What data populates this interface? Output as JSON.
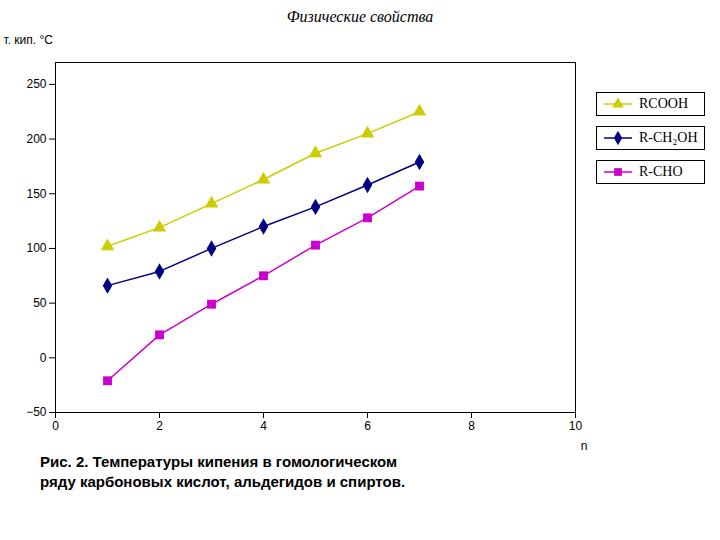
{
  "chart_data": {
    "type": "line",
    "title": "Физические свойства",
    "caption": [
      "Рис. 2. Температуры кипения в гомологическом",
      "ряду карбоновых кислот, альдегидов и спиртов."
    ],
    "xlabel": "n",
    "ylabel": "т. кип. °C",
    "x": [
      1,
      2,
      3,
      4,
      5,
      6,
      7
    ],
    "series": [
      {
        "name": "RCOOH",
        "color": "#cccc00",
        "marker": "triangle",
        "values": [
          102,
          119,
          141,
          163,
          187,
          205,
          225
        ]
      },
      {
        "name": "R-CH₂OH",
        "color": "#000080",
        "marker": "diamond",
        "values": [
          66,
          79,
          100,
          120,
          138,
          158,
          179
        ]
      },
      {
        "name": "R-CHO",
        "color": "#cc00cc",
        "marker": "square",
        "values": [
          -21,
          21,
          49,
          75,
          103,
          128,
          157
        ]
      }
    ],
    "xlim": [
      0,
      10
    ],
    "ylim": [
      -50,
      270
    ],
    "xticks": [
      0,
      2,
      4,
      6,
      8,
      10
    ],
    "yticks": [
      -50,
      0,
      50,
      100,
      150,
      200,
      250
    ],
    "grid": false,
    "legend": "right"
  }
}
